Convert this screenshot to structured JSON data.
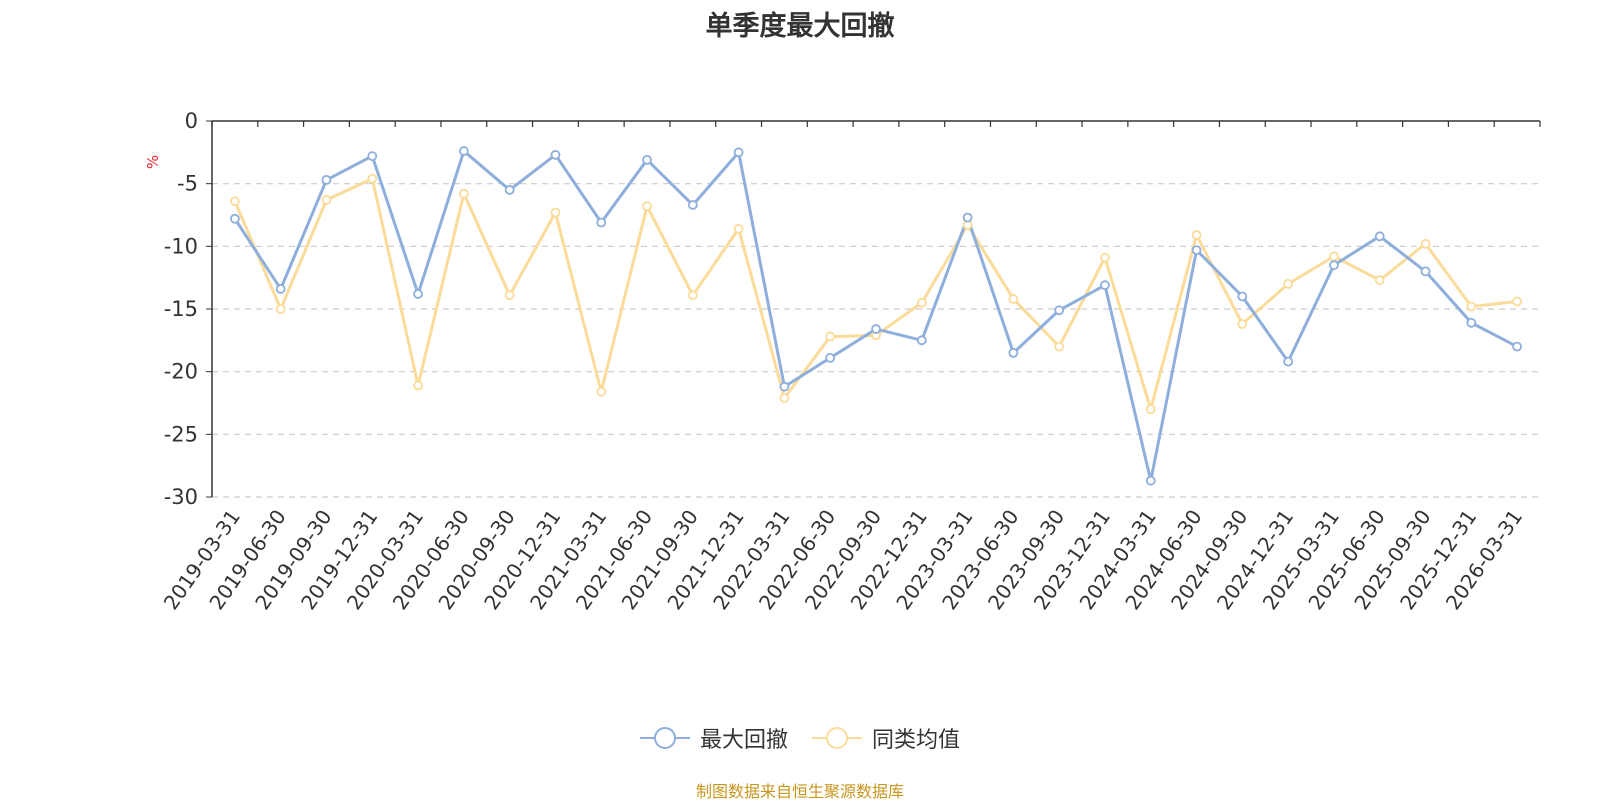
{
  "chart_data": {
    "type": "line",
    "title": "单季度最大回撤",
    "ylabel": "%",
    "ylim": [
      -30,
      0
    ],
    "yticks": [
      0,
      -5,
      -10,
      -15,
      -20,
      -25,
      -30
    ],
    "grid": true,
    "legend_placement": "bottom-center",
    "categories": [
      "2019-03-31",
      "2019-06-30",
      "2019-09-30",
      "2019-12-31",
      "2020-03-31",
      "2020-06-30",
      "2020-09-30",
      "2020-12-31",
      "2021-03-31",
      "2021-06-30",
      "2021-09-30",
      "2021-12-31",
      "2022-03-31",
      "2022-06-30",
      "2022-09-30",
      "2022-12-31",
      "2023-03-31",
      "2023-06-30",
      "2023-09-30",
      "2023-12-31",
      "2024-03-31",
      "2024-06-30",
      "2024-09-30",
      "2024-12-31",
      "2025-03-31",
      "2025-06-30",
      "2025-09-30",
      "2025-12-31",
      "2026-03-31"
    ],
    "series": [
      {
        "name": "最大回撤",
        "color": "#8eaedb",
        "values": [
          -7.8,
          -13.4,
          -4.7,
          -2.8,
          -13.8,
          -2.4,
          -5.5,
          -2.7,
          -8.1,
          -3.1,
          -6.7,
          -2.5,
          -21.2,
          -18.9,
          -16.6,
          -17.5,
          -7.7,
          -18.5,
          -15.1,
          -13.1,
          -28.7,
          -10.3,
          -14.0,
          -19.2,
          -11.5,
          -9.2,
          -12.0,
          -16.1,
          -18.0
        ]
      },
      {
        "name": "同类均值",
        "color": "#fbdb9a",
        "values": [
          -6.4,
          -15.0,
          -6.3,
          -4.6,
          -21.1,
          -5.8,
          -13.9,
          -7.3,
          -21.6,
          -6.8,
          -13.9,
          -8.6,
          -22.1,
          -17.2,
          -17.1,
          -14.5,
          -8.3,
          -14.2,
          -18.0,
          -10.9,
          -23.0,
          -9.1,
          -16.2,
          -13.0,
          -10.8,
          -12.7,
          -9.8,
          -14.8,
          -14.4
        ]
      }
    ],
    "source_note": "制图数据来自恒生聚源数据库"
  }
}
